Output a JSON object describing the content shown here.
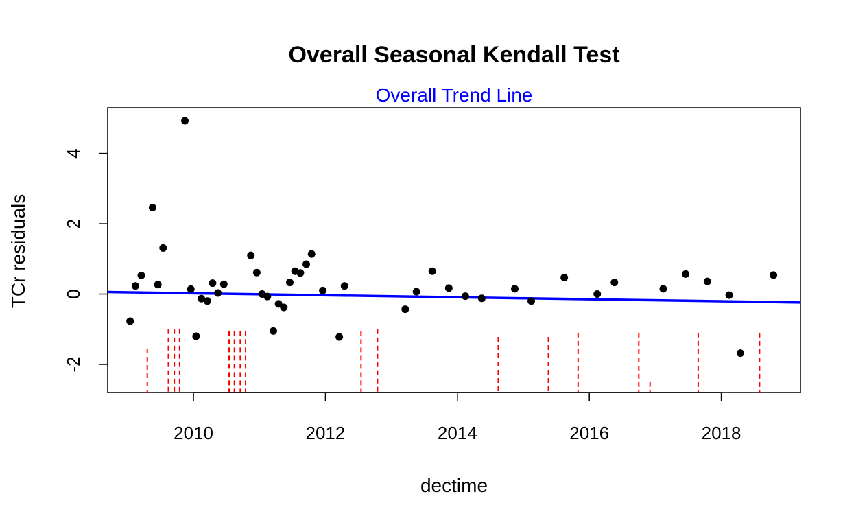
{
  "chart_data": {
    "type": "scatter",
    "title": "Overall Seasonal Kendall Test",
    "subtitle": "Overall Trend Line",
    "xlabel": "dectime",
    "ylabel": "TCr residuals",
    "xlim": [
      2008.7,
      2019.2
    ],
    "ylim": [
      -2.8,
      5.3
    ],
    "x_ticks": [
      2010,
      2012,
      2014,
      2016,
      2018
    ],
    "x_tick_labels": [
      "2010",
      "2012",
      "2014",
      "2016",
      "2018"
    ],
    "y_ticks": [
      -2,
      0,
      2,
      4
    ],
    "y_tick_labels": [
      "-2",
      "0",
      "2",
      "4"
    ],
    "grid": false,
    "colors": {
      "points": "#000000",
      "trend_line": "#0000ff",
      "marks": "#ff0000",
      "subtitle": "#0000ff"
    },
    "points": [
      {
        "x": 2009.04,
        "y": -0.77
      },
      {
        "x": 2009.12,
        "y": 0.23
      },
      {
        "x": 2009.21,
        "y": 0.53
      },
      {
        "x": 2009.38,
        "y": 2.46
      },
      {
        "x": 2009.46,
        "y": 0.27
      },
      {
        "x": 2009.54,
        "y": 1.31
      },
      {
        "x": 2009.87,
        "y": 4.93
      },
      {
        "x": 2009.96,
        "y": 0.14
      },
      {
        "x": 2010.04,
        "y": -1.2
      },
      {
        "x": 2010.12,
        "y": -0.13
      },
      {
        "x": 2010.21,
        "y": -0.2
      },
      {
        "x": 2010.29,
        "y": 0.31
      },
      {
        "x": 2010.37,
        "y": 0.03
      },
      {
        "x": 2010.46,
        "y": 0.28
      },
      {
        "x": 2010.87,
        "y": 1.1
      },
      {
        "x": 2010.96,
        "y": 0.61
      },
      {
        "x": 2011.04,
        "y": 0.0
      },
      {
        "x": 2011.12,
        "y": -0.07
      },
      {
        "x": 2011.21,
        "y": -1.05
      },
      {
        "x": 2011.29,
        "y": -0.28
      },
      {
        "x": 2011.37,
        "y": -0.38
      },
      {
        "x": 2011.46,
        "y": 0.33
      },
      {
        "x": 2011.54,
        "y": 0.65
      },
      {
        "x": 2011.62,
        "y": 0.6
      },
      {
        "x": 2011.71,
        "y": 0.85
      },
      {
        "x": 2011.79,
        "y": 1.14
      },
      {
        "x": 2011.96,
        "y": 0.1
      },
      {
        "x": 2012.21,
        "y": -1.22
      },
      {
        "x": 2012.29,
        "y": 0.23
      },
      {
        "x": 2013.21,
        "y": -0.43
      },
      {
        "x": 2013.38,
        "y": 0.07
      },
      {
        "x": 2013.62,
        "y": 0.65
      },
      {
        "x": 2013.87,
        "y": 0.17
      },
      {
        "x": 2014.12,
        "y": -0.06
      },
      {
        "x": 2014.37,
        "y": -0.12
      },
      {
        "x": 2014.87,
        "y": 0.15
      },
      {
        "x": 2015.12,
        "y": -0.2
      },
      {
        "x": 2015.62,
        "y": 0.47
      },
      {
        "x": 2016.12,
        "y": 0.0
      },
      {
        "x": 2016.38,
        "y": 0.33
      },
      {
        "x": 2017.12,
        "y": 0.15
      },
      {
        "x": 2017.46,
        "y": 0.57
      },
      {
        "x": 2017.79,
        "y": 0.36
      },
      {
        "x": 2018.12,
        "y": -0.03
      },
      {
        "x": 2018.29,
        "y": -1.68
      },
      {
        "x": 2018.79,
        "y": 0.54
      }
    ],
    "trend_line": {
      "x": [
        2008.7,
        2019.2
      ],
      "y": [
        0.06,
        -0.24
      ]
    },
    "vertical_marks": [
      {
        "x": 2009.3,
        "y_top": -1.55
      },
      {
        "x": 2009.62,
        "y_top": -1.0
      },
      {
        "x": 2009.71,
        "y_top": -1.0
      },
      {
        "x": 2009.79,
        "y_top": -1.0
      },
      {
        "x": 2010.54,
        "y_top": -1.05
      },
      {
        "x": 2010.62,
        "y_top": -1.05
      },
      {
        "x": 2010.71,
        "y_top": -1.05
      },
      {
        "x": 2010.79,
        "y_top": -1.05
      },
      {
        "x": 2012.54,
        "y_top": -1.05
      },
      {
        "x": 2012.79,
        "y_top": -1.0
      },
      {
        "x": 2014.62,
        "y_top": -1.22
      },
      {
        "x": 2015.38,
        "y_top": -1.22
      },
      {
        "x": 2015.83,
        "y_top": -1.1
      },
      {
        "x": 2016.75,
        "y_top": -1.1
      },
      {
        "x": 2016.92,
        "y_top": -2.5
      },
      {
        "x": 2017.65,
        "y_top": -1.1
      },
      {
        "x": 2018.58,
        "y_top": -1.1
      }
    ]
  }
}
